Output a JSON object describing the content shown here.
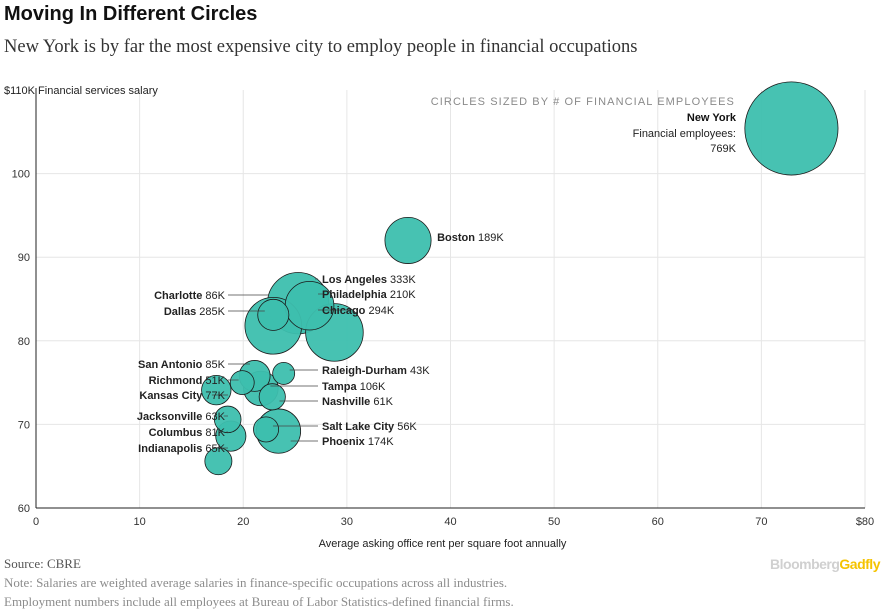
{
  "header": {
    "title": "Moving In Different Circles",
    "subtitle": "New York is by far the most expensive city to employ people in financial occupations"
  },
  "footer": {
    "source": "Source: CBRE",
    "note_line1": "Note: Salaries are weighted average salaries in finance-specific occupations across all industries.",
    "note_line2": "Employment numbers include all employees at Bureau of Labor Statistics-defined financial firms.",
    "brand_part1": "Bloomberg",
    "brand_part2": "Gadfly"
  },
  "colors": {
    "bubble": "#3dbfae",
    "bubble_stroke": "#1a1a1a",
    "grid": "#e6e6e6",
    "axis": "#222222",
    "leader": "#444444",
    "legend_note": "#8a8a8a"
  },
  "chart_data": {
    "type": "scatter",
    "title": "Moving In Different Circles",
    "xlabel": "Average asking office rent per square foot annually",
    "ylabel": "$110K Financial services salary",
    "size_note": "CIRCLES SIZED BY # OF FINANCIAL EMPLOYEES",
    "xlim": [
      0,
      80
    ],
    "ylim": [
      60,
      110
    ],
    "x_ticks": [
      0,
      10,
      20,
      30,
      40,
      50,
      60,
      70,
      80
    ],
    "x_tick_labels": [
      "0",
      "10",
      "20",
      "30",
      "40",
      "50",
      "60",
      "70",
      "$80"
    ],
    "y_ticks": [
      60,
      70,
      80,
      90,
      100
    ],
    "y_tick_labels": [
      "60",
      "70",
      "80",
      "90",
      "100"
    ],
    "grid": true,
    "points": [
      {
        "city": "New York",
        "x": 72.9,
        "y": 105.4,
        "employees": 769,
        "emp_label": "769K",
        "label_style": "stack",
        "label_line2": "Financial employees:"
      },
      {
        "city": "Boston",
        "x": 35.9,
        "y": 92.0,
        "employees": 189,
        "emp_label": "189K",
        "label_side": "right"
      },
      {
        "city": "Chicago",
        "x": 28.8,
        "y": 81.0,
        "employees": 294,
        "emp_label": "294K",
        "label_side": "right"
      },
      {
        "city": "Dallas",
        "x": 22.9,
        "y": 81.8,
        "employees": 285,
        "emp_label": "285K",
        "label_side": "left"
      },
      {
        "city": "Los Angeles",
        "x": 25.3,
        "y": 84.5,
        "employees": 333,
        "emp_label": "333K",
        "label_side": "right"
      },
      {
        "city": "Philadelphia",
        "x": 26.4,
        "y": 84.2,
        "employees": 210,
        "emp_label": "210K",
        "label_side": "right"
      },
      {
        "city": "Charlotte",
        "x": 22.9,
        "y": 83.1,
        "employees": 86,
        "emp_label": "86K",
        "label_side": "left"
      },
      {
        "city": "San Antonio",
        "x": 21.1,
        "y": 75.8,
        "employees": 85,
        "emp_label": "85K",
        "label_side": "left"
      },
      {
        "city": "Richmond",
        "x": 19.9,
        "y": 75.0,
        "employees": 51,
        "emp_label": "51K",
        "label_side": "left"
      },
      {
        "city": "Kansas City",
        "x": 17.4,
        "y": 74.1,
        "employees": 77,
        "emp_label": "77K",
        "label_side": "left"
      },
      {
        "city": "Tampa",
        "x": 21.7,
        "y": 74.3,
        "employees": 106,
        "emp_label": "106K",
        "label_side": "right"
      },
      {
        "city": "Nashville",
        "x": 22.8,
        "y": 73.3,
        "employees": 61,
        "emp_label": "61K",
        "label_side": "right"
      },
      {
        "city": "Raleigh-Durham",
        "x": 23.9,
        "y": 76.1,
        "employees": 43,
        "emp_label": "43K",
        "label_side": "right"
      },
      {
        "city": "Jacksonville",
        "x": 18.5,
        "y": 70.6,
        "employees": 63,
        "emp_label": "63K",
        "label_side": "left"
      },
      {
        "city": "Columbus",
        "x": 18.8,
        "y": 68.6,
        "employees": 81,
        "emp_label": "81K",
        "label_side": "left"
      },
      {
        "city": "Indianapolis",
        "x": 17.6,
        "y": 65.6,
        "employees": 65,
        "emp_label": "65K",
        "label_side": "left"
      },
      {
        "city": "Salt Lake City",
        "x": 22.2,
        "y": 69.4,
        "employees": 56,
        "emp_label": "56K",
        "label_side": "right"
      },
      {
        "city": "Phoenix",
        "x": 23.4,
        "y": 69.2,
        "employees": 174,
        "emp_label": "174K",
        "label_side": "right"
      }
    ]
  }
}
